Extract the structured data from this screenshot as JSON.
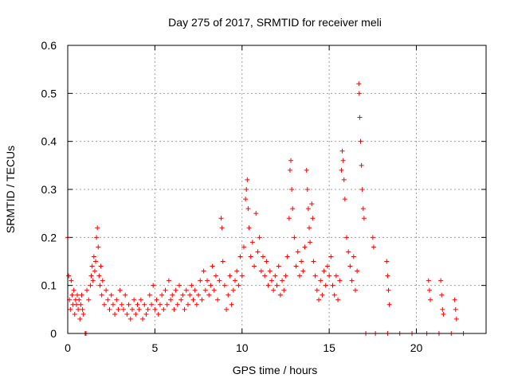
{
  "chart_data": {
    "type": "scatter",
    "title": "Day 275 of 2017, SRMTID for receiver meli",
    "xlabel": "GPS time / hours",
    "ylabel": "SRMTID / TECUs",
    "xlim": [
      0,
      24
    ],
    "ylim": [
      0,
      0.6
    ],
    "xticks": [
      0,
      5,
      10,
      15,
      20
    ],
    "yticks": [
      0,
      0.1,
      0.2,
      0.3,
      0.4,
      0.5,
      0.6
    ],
    "xtick_labels": [
      "0",
      "5",
      "10",
      "15",
      "20"
    ],
    "ytick_labels": [
      "0",
      "0.1",
      "0.2",
      "0.3",
      "0.4",
      "0.5",
      "0.6"
    ],
    "grid": true,
    "legend": "none",
    "marker": "plus",
    "series": [
      {
        "name": "SRMTID",
        "color": "#ff0000",
        "approximate": true,
        "points": [
          [
            0.0,
            0.2
          ],
          [
            0.05,
            0.12
          ],
          [
            0.1,
            0.07
          ],
          [
            0.15,
            0.05
          ],
          [
            0.2,
            0.11
          ],
          [
            0.25,
            0.08
          ],
          [
            0.3,
            0.06
          ],
          [
            0.35,
            0.09
          ],
          [
            0.4,
            0.04
          ],
          [
            0.45,
            0.07
          ],
          [
            0.5,
            0.06
          ],
          [
            0.55,
            0.08
          ],
          [
            0.6,
            0.05
          ],
          [
            0.65,
            0.07
          ],
          [
            0.7,
            0.03
          ],
          [
            0.75,
            0.06
          ],
          [
            0.8,
            0.08
          ],
          [
            0.85,
            0.05
          ],
          [
            0.9,
            0.04
          ],
          [
            1.0,
            0.0
          ],
          [
            1.1,
            0.09
          ],
          [
            1.2,
            0.07
          ],
          [
            1.3,
            0.1
          ],
          [
            1.35,
            0.12
          ],
          [
            1.4,
            0.14
          ],
          [
            1.45,
            0.11
          ],
          [
            1.5,
            0.16
          ],
          [
            1.55,
            0.13
          ],
          [
            1.6,
            0.15
          ],
          [
            1.65,
            0.2
          ],
          [
            1.7,
            0.22
          ],
          [
            1.75,
            0.18
          ],
          [
            1.8,
            0.12
          ],
          [
            1.85,
            0.1
          ],
          [
            1.9,
            0.14
          ],
          [
            1.95,
            0.08
          ],
          [
            2.0,
            0.11
          ],
          [
            2.1,
            0.06
          ],
          [
            2.2,
            0.09
          ],
          [
            2.3,
            0.07
          ],
          [
            2.4,
            0.05
          ],
          [
            2.5,
            0.08
          ],
          [
            2.6,
            0.06
          ],
          [
            2.7,
            0.04
          ],
          [
            2.8,
            0.07
          ],
          [
            2.9,
            0.05
          ],
          [
            3.0,
            0.09
          ],
          [
            3.1,
            0.06
          ],
          [
            3.2,
            0.05
          ],
          [
            3.3,
            0.08
          ],
          [
            3.4,
            0.04
          ],
          [
            3.5,
            0.06
          ],
          [
            3.6,
            0.03
          ],
          [
            3.7,
            0.05
          ],
          [
            3.8,
            0.07
          ],
          [
            3.9,
            0.04
          ],
          [
            4.0,
            0.06
          ],
          [
            4.1,
            0.05
          ],
          [
            4.2,
            0.07
          ],
          [
            4.3,
            0.03
          ],
          [
            4.4,
            0.06
          ],
          [
            4.5,
            0.04
          ],
          [
            4.6,
            0.05
          ],
          [
            4.7,
            0.08
          ],
          [
            4.8,
            0.06
          ],
          [
            4.9,
            0.1
          ],
          [
            5.0,
            0.05
          ],
          [
            5.1,
            0.07
          ],
          [
            5.2,
            0.04
          ],
          [
            5.3,
            0.06
          ],
          [
            5.4,
            0.08
          ],
          [
            5.5,
            0.05
          ],
          [
            5.6,
            0.09
          ],
          [
            5.7,
            0.06
          ],
          [
            5.8,
            0.11
          ],
          [
            5.9,
            0.07
          ],
          [
            6.0,
            0.08
          ],
          [
            6.1,
            0.05
          ],
          [
            6.2,
            0.09
          ],
          [
            6.3,
            0.06
          ],
          [
            6.4,
            0.1
          ],
          [
            6.5,
            0.07
          ],
          [
            6.6,
            0.08
          ],
          [
            6.7,
            0.05
          ],
          [
            6.8,
            0.09
          ],
          [
            6.9,
            0.06
          ],
          [
            7.0,
            0.08
          ],
          [
            7.1,
            0.1
          ],
          [
            7.2,
            0.07
          ],
          [
            7.3,
            0.09
          ],
          [
            7.4,
            0.06
          ],
          [
            7.5,
            0.08
          ],
          [
            7.6,
            0.11
          ],
          [
            7.7,
            0.07
          ],
          [
            7.8,
            0.13
          ],
          [
            7.9,
            0.09
          ],
          [
            8.0,
            0.11
          ],
          [
            8.1,
            0.08
          ],
          [
            8.2,
            0.1
          ],
          [
            8.3,
            0.14
          ],
          [
            8.4,
            0.09
          ],
          [
            8.5,
            0.12
          ],
          [
            8.6,
            0.07
          ],
          [
            8.7,
            0.11
          ],
          [
            8.8,
            0.24
          ],
          [
            8.85,
            0.22
          ],
          [
            8.9,
            0.15
          ],
          [
            9.0,
            0.1
          ],
          [
            9.1,
            0.05
          ],
          [
            9.2,
            0.08
          ],
          [
            9.3,
            0.12
          ],
          [
            9.4,
            0.06
          ],
          [
            9.5,
            0.09
          ],
          [
            9.6,
            0.11
          ],
          [
            9.7,
            0.13
          ],
          [
            9.8,
            0.1
          ],
          [
            9.9,
            0.16
          ],
          [
            10.0,
            0.12
          ],
          [
            10.1,
            0.18
          ],
          [
            10.2,
            0.28
          ],
          [
            10.25,
            0.3
          ],
          [
            10.3,
            0.32
          ],
          [
            10.35,
            0.26
          ],
          [
            10.4,
            0.22
          ],
          [
            10.5,
            0.16
          ],
          [
            10.6,
            0.19
          ],
          [
            10.7,
            0.14
          ],
          [
            10.8,
            0.25
          ],
          [
            10.9,
            0.17
          ],
          [
            11.0,
            0.2
          ],
          [
            11.1,
            0.13
          ],
          [
            11.2,
            0.16
          ],
          [
            11.3,
            0.12
          ],
          [
            11.4,
            0.15
          ],
          [
            11.5,
            0.1
          ],
          [
            11.6,
            0.13
          ],
          [
            11.7,
            0.11
          ],
          [
            11.8,
            0.09
          ],
          [
            11.9,
            0.12
          ],
          [
            12.0,
            0.1
          ],
          [
            12.1,
            0.14
          ],
          [
            12.2,
            0.08
          ],
          [
            12.3,
            0.11
          ],
          [
            12.4,
            0.09
          ],
          [
            12.5,
            0.12
          ],
          [
            12.6,
            0.16
          ],
          [
            12.7,
            0.24
          ],
          [
            12.75,
            0.34
          ],
          [
            12.8,
            0.36
          ],
          [
            12.85,
            0.3
          ],
          [
            12.9,
            0.26
          ],
          [
            13.0,
            0.2
          ],
          [
            13.1,
            0.14
          ],
          [
            13.2,
            0.17
          ],
          [
            13.3,
            0.12
          ],
          [
            13.4,
            0.15
          ],
          [
            13.5,
            0.13
          ],
          [
            13.6,
            0.18
          ],
          [
            13.7,
            0.34
          ],
          [
            13.75,
            0.3
          ],
          [
            13.8,
            0.26
          ],
          [
            13.85,
            0.22
          ],
          [
            13.9,
            0.19
          ],
          [
            14.0,
            0.27
          ],
          [
            14.05,
            0.24
          ],
          [
            14.1,
            0.15
          ],
          [
            14.2,
            0.12
          ],
          [
            14.3,
            0.09
          ],
          [
            14.4,
            0.07
          ],
          [
            14.5,
            0.11
          ],
          [
            14.6,
            0.08
          ],
          [
            14.7,
            0.13
          ],
          [
            14.8,
            0.1
          ],
          [
            14.9,
            0.14
          ],
          [
            15.0,
            0.12
          ],
          [
            15.1,
            0.16
          ],
          [
            15.2,
            0.1
          ],
          [
            15.3,
            0.08
          ],
          [
            15.4,
            0.12
          ],
          [
            15.5,
            0.07
          ],
          [
            15.6,
            0.11
          ],
          [
            15.7,
            0.34
          ],
          [
            15.75,
            0.38
          ],
          [
            15.8,
            0.36
          ],
          [
            15.85,
            0.32
          ],
          [
            15.9,
            0.28
          ],
          [
            16.0,
            0.2
          ],
          [
            16.1,
            0.17
          ],
          [
            16.2,
            0.14
          ],
          [
            16.3,
            0.11
          ],
          [
            16.4,
            0.16
          ],
          [
            16.5,
            0.09
          ],
          [
            16.6,
            0.13
          ],
          [
            16.7,
            0.52
          ],
          [
            16.72,
            0.5
          ],
          [
            16.75,
            0.45
          ],
          [
            16.8,
            0.4
          ],
          [
            16.85,
            0.35
          ],
          [
            16.9,
            0.3
          ],
          [
            16.95,
            0.26
          ],
          [
            17.0,
            0.24
          ],
          [
            17.1,
            0.0
          ],
          [
            17.5,
            0.2
          ],
          [
            17.55,
            0.18
          ],
          [
            18.3,
            0.15
          ],
          [
            18.35,
            0.12
          ],
          [
            18.4,
            0.09
          ],
          [
            18.45,
            0.06
          ],
          [
            20.7,
            0.11
          ],
          [
            20.75,
            0.09
          ],
          [
            20.8,
            0.07
          ],
          [
            21.4,
            0.11
          ],
          [
            21.45,
            0.08
          ],
          [
            21.5,
            0.05
          ],
          [
            21.55,
            0.04
          ],
          [
            22.2,
            0.07
          ],
          [
            22.25,
            0.05
          ],
          [
            22.3,
            0.03
          ],
          [
            1.05,
            0.0
          ],
          [
            17.65,
            0.0
          ],
          [
            18.35,
            0.0
          ],
          [
            19.05,
            0.0
          ],
          [
            19.75,
            0.0
          ],
          [
            20.6,
            0.0
          ],
          [
            21.3,
            0.0
          ],
          [
            22.0,
            0.0
          ],
          [
            22.7,
            0.0
          ]
        ]
      }
    ]
  }
}
